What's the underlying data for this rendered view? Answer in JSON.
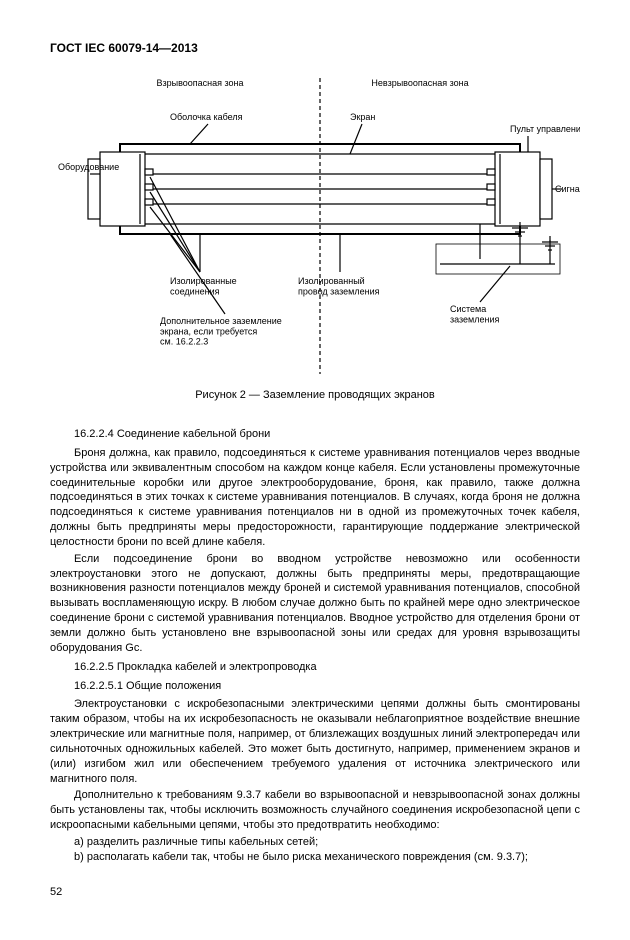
{
  "header": "ГОСТ IEC 60079-14—2013",
  "diagram": {
    "labels": {
      "hazardous_zone": "Взрывоопасная зона",
      "non_hazardous_zone": "Невзрывоопасная зона",
      "cable_sheath": "Оболочка кабеля",
      "screen": "Экран",
      "equipment": "Оборудование",
      "control_panel": "Пульт управления",
      "-signal": "Сигнал",
      "isolated_connections": "Изолированные\nсоединения",
      "isolated_ground_wire": "Изолированный\nпровод заземления",
      "additional_ground": "Дополнительное заземление\nэкрана, если требуется\nсм. 16.2.2.3",
      "ground_system": "Система\nзаземления"
    },
    "colors": {
      "line": "#000000",
      "bg": "#ffffff",
      "text": "#000000"
    },
    "fontsize_label": 9,
    "line_width": 1.2
  },
  "figure_caption": "Рисунок 2 — Заземление проводящих экранов",
  "sections": {
    "s1_num": "16.2.2.4 Соединение кабельной брони",
    "s1_p1": "Броня должна, как правило, подсоединяться к системе уравнивания потенциалов через вводные устройства или эквивалентным способом на каждом конце кабеля. Если установлены промежуточные соединительные коробки или другое электрооборудование, броня, как правило, также должна подсоединяться в этих точках к системе уравнивания потенциалов. В случаях, когда броня не должна подсоединяться к системе уравнивания потенциалов ни в одной из промежуточных точек кабеля, должны быть предприняты меры предосторожности, гарантирующие поддержание электрической целостности брони по всей длине кабеля.",
    "s1_p2": "Если подсоединение брони во вводном устройстве невозможно или особенности электроустановки этого не допускают, должны быть предприняты меры, предотвращающие возникновения разности потенциалов между броней и системой уравнивания потенциалов, способной вызывать воспламеняющую искру. В любом случае должно быть по крайней мере одно электрическое соединение брони с системой уравнивания потенциалов. Вводное устройство для отделения брони от земли должно быть установлено вне взрывоопасной зоны или средах для уровня взрывозащиты оборудования  Gc.",
    "s2_num": "16.2.2.5 Прокладка кабелей и электропроводка",
    "s3_num": "16.2.2.5.1 Общие положения",
    "s3_p1": "Электроустановки с искробезопасными электрическими цепями должны быть смонтированы таким образом, чтобы на их искробезопасность не оказывали неблагоприятное воздействие внешние электрические или магнитные поля, например, от близлежащих воздушных линий электропередач или сильноточных одножильных кабелей. Это может быть достигнуто, например, применением экранов и (или) изгибом жил или обеспечением требуемого удаления от источника электрического или магнитного поля.",
    "s3_p2": "Дополнительно к требованиям 9.3.7 кабели во взрывоопасной и невзрывоопасной зонах должны быть установлены так, чтобы исключить возможность случайного соединения искробезопасной цепи с искроопасными кабельными цепями, чтобы это предотвратить необходимо:",
    "li_a": "a) разделить различные типы кабельных сетей;",
    "li_b": "b) располагать кабели так, чтобы не было риска механического повреждения (см. 9.3.7);"
  },
  "page_number": "52"
}
